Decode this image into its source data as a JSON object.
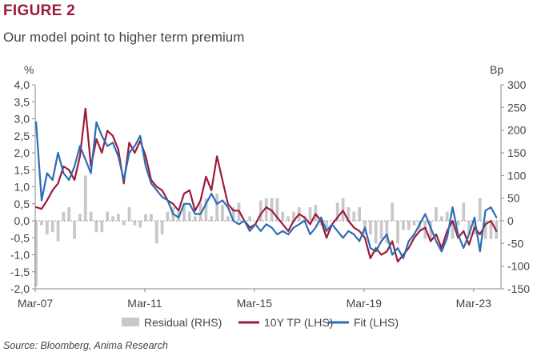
{
  "figure": {
    "label": "FIGURE 2",
    "title": "Our model point to higher term premium",
    "source": "Source: Bloomberg, Anima Research"
  },
  "chart_data": {
    "type": "line",
    "left_axis": {
      "unit": "%",
      "min": -2.0,
      "max": 4.0,
      "ticks": [
        "4,0",
        "3,5",
        "3,0",
        "2,5",
        "2,0",
        "1,5",
        "1,0",
        "0,5",
        "0,0",
        "-0,5",
        "-1,0",
        "-1,5",
        "-2,0"
      ]
    },
    "right_axis": {
      "unit": "Bp",
      "min": -150,
      "max": 300,
      "ticks": [
        "300",
        "250",
        "200",
        "150",
        "100",
        "50",
        "0",
        "-50",
        "-100",
        "-150"
      ]
    },
    "x_axis": {
      "start": "2007-03",
      "end": "2024-03",
      "tick_labels": [
        "Mar-07",
        "Mar-11",
        "Mar-15",
        "Mar-19",
        "Mar-23"
      ]
    },
    "legend": {
      "placement": "bottom",
      "entries": [
        {
          "label": "Residual (RHS)",
          "kind": "bar",
          "color": "#c8c8c8"
        },
        {
          "label": "10Y TP (LHS)",
          "kind": "line",
          "color": "#9b1b3a"
        },
        {
          "label": "Fit (LHS)",
          "kind": "line",
          "color": "#2a6db5"
        }
      ]
    },
    "colors": {
      "tp": "#9b1b3a",
      "fit": "#2a6db5",
      "residual": "#c8c8c8"
    },
    "series": [
      {
        "name": "10Y TP (LHS)",
        "axis": "left",
        "x": [
          2007.2,
          2007.4,
          2007.6,
          2007.8,
          2008.0,
          2008.2,
          2008.4,
          2008.6,
          2008.8,
          2009.0,
          2009.2,
          2009.4,
          2009.6,
          2009.8,
          2010.0,
          2010.2,
          2010.4,
          2010.6,
          2010.8,
          2011.0,
          2011.2,
          2011.4,
          2011.6,
          2011.8,
          2012.0,
          2012.2,
          2012.4,
          2012.6,
          2012.8,
          2013.0,
          2013.2,
          2013.4,
          2013.6,
          2013.8,
          2014.0,
          2014.2,
          2014.4,
          2014.6,
          2014.8,
          2015.0,
          2015.2,
          2015.4,
          2015.6,
          2015.8,
          2016.0,
          2016.2,
          2016.4,
          2016.6,
          2016.8,
          2017.0,
          2017.2,
          2017.4,
          2017.6,
          2017.8,
          2018.0,
          2018.2,
          2018.4,
          2018.6,
          2018.8,
          2019.0,
          2019.2,
          2019.4,
          2019.6,
          2019.8,
          2020.0,
          2020.2,
          2020.4,
          2020.6,
          2020.8,
          2021.0,
          2021.2,
          2021.4,
          2021.6,
          2021.8,
          2022.0,
          2022.2,
          2022.4,
          2022.6,
          2022.8,
          2023.0,
          2023.2,
          2023.4,
          2023.6,
          2023.8,
          2024.0
        ],
        "y": [
          0.4,
          0.35,
          0.6,
          0.9,
          1.1,
          1.6,
          1.5,
          1.2,
          1.9,
          3.3,
          1.6,
          2.4,
          2.0,
          2.65,
          2.5,
          2.1,
          1.1,
          2.3,
          2.0,
          2.35,
          1.9,
          1.2,
          1.0,
          0.9,
          0.6,
          0.5,
          0.3,
          0.8,
          0.9,
          0.3,
          0.6,
          1.3,
          0.9,
          1.9,
          1.2,
          0.5,
          0.3,
          0.3,
          0.0,
          -0.2,
          -0.1,
          0.2,
          0.4,
          0.3,
          0.1,
          -0.1,
          -0.3,
          0.0,
          0.2,
          0.1,
          -0.1,
          0.2,
          0.0,
          -0.5,
          -0.1,
          0.1,
          0.3,
          0.0,
          -0.2,
          -0.3,
          -0.5,
          -1.1,
          -0.8,
          -1.0,
          -0.9,
          -0.6,
          -1.2,
          -1.0,
          -0.8,
          -0.5,
          -0.3,
          -0.2,
          -0.6,
          -0.4,
          -0.8,
          -0.3,
          0.0,
          -0.5,
          -0.3,
          -0.7,
          -0.2,
          -0.4,
          -0.1,
          0.0,
          -0.3
        ]
      },
      {
        "name": "Fit (LHS)",
        "axis": "left",
        "x": [
          2007.2,
          2007.4,
          2007.6,
          2007.8,
          2008.0,
          2008.2,
          2008.4,
          2008.6,
          2008.8,
          2009.0,
          2009.2,
          2009.4,
          2009.6,
          2009.8,
          2010.0,
          2010.2,
          2010.4,
          2010.6,
          2010.8,
          2011.0,
          2011.2,
          2011.4,
          2011.6,
          2011.8,
          2012.0,
          2012.2,
          2012.4,
          2012.6,
          2012.8,
          2013.0,
          2013.2,
          2013.4,
          2013.6,
          2013.8,
          2014.0,
          2014.2,
          2014.4,
          2014.6,
          2014.8,
          2015.0,
          2015.2,
          2015.4,
          2015.6,
          2015.8,
          2016.0,
          2016.2,
          2016.4,
          2016.6,
          2016.8,
          2017.0,
          2017.2,
          2017.4,
          2017.6,
          2017.8,
          2018.0,
          2018.2,
          2018.4,
          2018.6,
          2018.8,
          2019.0,
          2019.2,
          2019.4,
          2019.6,
          2019.8,
          2020.0,
          2020.2,
          2020.4,
          2020.6,
          2020.8,
          2021.0,
          2021.2,
          2021.4,
          2021.6,
          2021.8,
          2022.0,
          2022.2,
          2022.4,
          2022.6,
          2022.8,
          2023.0,
          2023.2,
          2023.4,
          2023.6,
          2023.8,
          2024.0
        ],
        "y": [
          2.9,
          0.6,
          1.4,
          1.2,
          2.0,
          1.4,
          1.2,
          1.6,
          2.2,
          1.8,
          1.4,
          2.9,
          2.5,
          2.2,
          2.3,
          1.9,
          1.2,
          2.0,
          2.2,
          2.5,
          1.6,
          1.1,
          0.9,
          0.7,
          0.6,
          0.2,
          0.1,
          0.5,
          0.5,
          0.2,
          0.2,
          0.5,
          0.8,
          0.5,
          0.6,
          0.4,
          0.0,
          -0.1,
          0.0,
          -0.3,
          -0.1,
          -0.3,
          -0.1,
          -0.2,
          -0.4,
          -0.3,
          -0.4,
          -0.2,
          -0.1,
          0.0,
          -0.4,
          -0.2,
          0.1,
          -0.3,
          -0.1,
          -0.3,
          -0.5,
          -0.3,
          -0.4,
          -0.6,
          -0.2,
          -0.8,
          -0.9,
          -0.6,
          -0.4,
          -1.0,
          -0.8,
          -1.1,
          -0.6,
          -0.4,
          -0.1,
          0.2,
          -0.2,
          -0.6,
          -0.9,
          -0.5,
          0.4,
          -0.4,
          -0.8,
          -0.4,
          0.1,
          -0.9,
          0.3,
          0.4,
          0.1
        ]
      },
      {
        "name": "Residual (RHS)",
        "axis": "right",
        "kind": "bar",
        "x": [
          2007.2,
          2007.4,
          2007.6,
          2007.8,
          2008.0,
          2008.2,
          2008.4,
          2008.6,
          2008.8,
          2009.0,
          2009.2,
          2009.4,
          2009.6,
          2009.8,
          2010.0,
          2010.2,
          2010.4,
          2010.6,
          2010.8,
          2011.0,
          2011.2,
          2011.4,
          2011.6,
          2011.8,
          2012.0,
          2012.2,
          2012.4,
          2012.6,
          2012.8,
          2013.0,
          2013.2,
          2013.4,
          2013.6,
          2013.8,
          2014.0,
          2014.2,
          2014.4,
          2014.6,
          2014.8,
          2015.0,
          2015.2,
          2015.4,
          2015.6,
          2015.8,
          2016.0,
          2016.2,
          2016.4,
          2016.6,
          2016.8,
          2017.0,
          2017.2,
          2017.4,
          2017.6,
          2017.8,
          2018.0,
          2018.2,
          2018.4,
          2018.6,
          2018.8,
          2019.0,
          2019.2,
          2019.4,
          2019.6,
          2019.8,
          2020.0,
          2020.2,
          2020.4,
          2020.6,
          2020.8,
          2021.0,
          2021.2,
          2021.4,
          2021.6,
          2021.8,
          2022.0,
          2022.2,
          2022.4,
          2022.6,
          2022.8,
          2023.0,
          2023.2,
          2023.4,
          2023.6,
          2023.8,
          2024.0
        ],
        "values": [
          -145,
          -10,
          -30,
          -25,
          -45,
          20,
          30,
          -40,
          15,
          100,
          20,
          -25,
          -25,
          20,
          10,
          15,
          -10,
          30,
          -10,
          -15,
          15,
          15,
          -50,
          -30,
          20,
          30,
          20,
          35,
          20,
          10,
          40,
          50,
          10,
          60,
          35,
          10,
          30,
          40,
          0,
          10,
          0,
          45,
          50,
          50,
          50,
          20,
          10,
          20,
          30,
          10,
          30,
          35,
          -10,
          -20,
          0,
          40,
          50,
          30,
          20,
          30,
          -30,
          -30,
          -50,
          -40,
          -50,
          40,
          -50,
          -20,
          -20,
          -10,
          -20,
          -40,
          -40,
          30,
          10,
          20,
          -40,
          -10,
          40,
          -30,
          -30,
          50,
          -40,
          -40,
          -40
        ]
      }
    ]
  }
}
